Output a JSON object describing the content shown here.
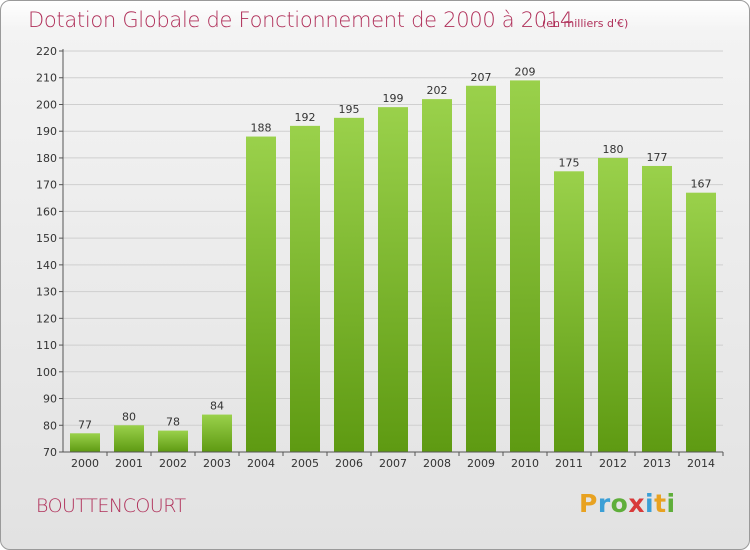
{
  "title": "Dotation Globale de Fonctionnement de 2000 à 2014",
  "subtitle": "(en milliers d'€)",
  "commune": "BOUTTENCOURT",
  "logo": "Proxiti",
  "colors": {
    "title": "#b0305a",
    "bar_top": "#9ad14b",
    "bar_bottom": "#5e9a12"
  },
  "chart_data": {
    "type": "bar",
    "title": "Dotation Globale de Fonctionnement de 2000 à 2014",
    "subtitle": "(en milliers d'€)",
    "xlabel": "",
    "ylabel": "",
    "categories": [
      "2000",
      "2001",
      "2002",
      "2003",
      "2004",
      "2005",
      "2006",
      "2007",
      "2008",
      "2009",
      "2010",
      "2011",
      "2012",
      "2013",
      "2014"
    ],
    "values": [
      77,
      80,
      78,
      84,
      188,
      192,
      195,
      199,
      202,
      207,
      209,
      175,
      180,
      177,
      167
    ],
    "ylim": [
      70,
      220
    ],
    "yticks": [
      70,
      80,
      90,
      100,
      110,
      120,
      130,
      140,
      150,
      160,
      170,
      180,
      190,
      200,
      210,
      220
    ],
    "grid": true,
    "data_labels": true
  }
}
